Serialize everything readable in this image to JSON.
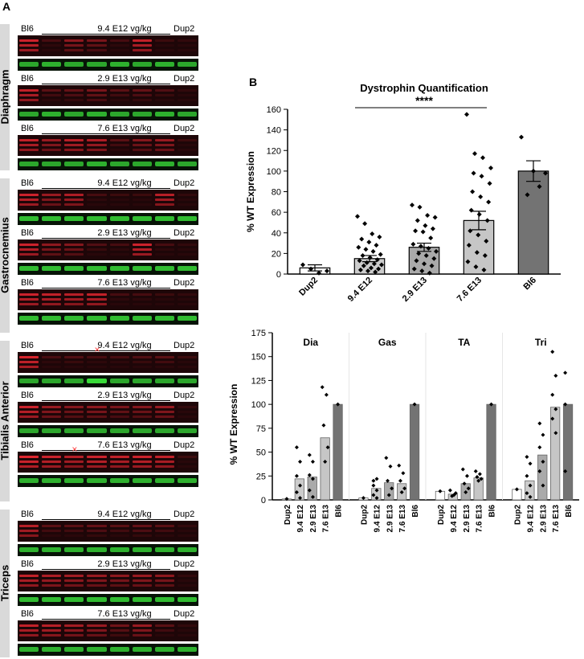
{
  "panel_a": {
    "letter": "A",
    "muscles": [
      {
        "name": "Diaphragm",
        "blots": [
          {
            "left": "Bl6",
            "dose": "9.4 E12 vg/kg",
            "right": "Dup2",
            "lanes": [
              0.85,
              0.2,
              0.55,
              0.45,
              0.2,
              0.8,
              0.15,
              0.1
            ],
            "green": [
              0.7,
              0.75,
              0.7,
              0.7,
              0.75,
              0.7,
              0.75,
              0.7
            ]
          },
          {
            "left": "Bl6",
            "dose": "2.9 E13 vg/kg",
            "right": "Dup2",
            "lanes": [
              0.8,
              0.3,
              0.35,
              0.45,
              0.3,
              0.35,
              0.25,
              0.1
            ],
            "green": [
              0.7,
              0.75,
              0.7,
              0.75,
              0.7,
              0.7,
              0.75,
              0.7
            ]
          },
          {
            "left": "Bl6",
            "dose": "7.6 E13 vg/kg",
            "right": "Dup2",
            "lanes": [
              0.8,
              0.6,
              0.75,
              0.7,
              0.3,
              0.5,
              0.6,
              0.15
            ],
            "green": [
              0.7,
              0.7,
              0.7,
              0.75,
              0.7,
              0.7,
              0.75,
              0.7
            ]
          }
        ]
      },
      {
        "name": "Gastrocnemius",
        "blots": [
          {
            "left": "Bl6",
            "dose": "9.4 E12 vg/kg",
            "right": "Dup2",
            "lanes": [
              0.85,
              0.6,
              0.7,
              0.2,
              0.15,
              0.15,
              0.75,
              0.1
            ],
            "green": [
              0.8,
              0.8,
              0.8,
              0.8,
              0.8,
              0.8,
              0.8,
              0.8
            ]
          },
          {
            "left": "Bl6",
            "dose": "2.9 E13 vg/kg",
            "right": "Dup2",
            "lanes": [
              0.85,
              0.55,
              0.5,
              0.25,
              0.2,
              0.85,
              0.2,
              0.1
            ],
            "green": [
              0.8,
              0.8,
              0.8,
              0.8,
              0.8,
              0.8,
              0.8,
              0.8
            ]
          },
          {
            "left": "Bl6",
            "dose": "7.6 E13 vg/kg",
            "right": "Dup2",
            "lanes": [
              0.85,
              0.8,
              0.75,
              0.8,
              0.2,
              0.2,
              0.15,
              0.1
            ],
            "green": [
              0.8,
              0.8,
              0.8,
              0.8,
              0.8,
              0.8,
              0.8,
              0.8
            ]
          }
        ]
      },
      {
        "name": "Tibialis Anterior",
        "blots": [
          {
            "left": "Bl6",
            "dose": "9.4 E12 vg/kg",
            "right": "Dup2",
            "lanes": [
              0.9,
              0.2,
              0.25,
              0.2,
              0.2,
              0.25,
              0.3,
              0.15
            ],
            "green": [
              0.7,
              0.7,
              0.7,
              0.95,
              0.7,
              0.7,
              0.7,
              0.7
            ],
            "x_lane": 3
          },
          {
            "left": "Bl6",
            "dose": "2.9 E13 vg/kg",
            "right": "Dup2",
            "lanes": [
              0.85,
              0.6,
              0.5,
              0.55,
              0.45,
              0.5,
              0.6,
              0.1
            ],
            "green": [
              0.7,
              0.7,
              0.7,
              0.7,
              0.7,
              0.7,
              0.7,
              0.7
            ]
          },
          {
            "left": "Bl6",
            "dose": "7.6 E13 vg/kg",
            "right": "Dup2",
            "lanes": [
              0.95,
              0.85,
              0.75,
              0.85,
              0.8,
              0.85,
              0.8,
              0.15
            ],
            "green": [
              0.75,
              0.75,
              0.75,
              0.75,
              0.75,
              0.75,
              0.75,
              0.75
            ],
            "x_lane": 2
          }
        ]
      },
      {
        "name": "Triceps",
        "blots": [
          {
            "left": "Bl6",
            "dose": "9.4 E12 vg/kg",
            "right": "Dup2",
            "lanes": [
              0.75,
              0.3,
              0.3,
              0.35,
              0.3,
              0.35,
              0.3,
              0.1
            ],
            "green": [
              0.75,
              0.75,
              0.75,
              0.75,
              0.75,
              0.75,
              0.75,
              0.75
            ]
          },
          {
            "left": "Bl6",
            "dose": "2.9 E13 vg/kg",
            "right": "Dup2",
            "lanes": [
              0.8,
              0.7,
              0.65,
              0.6,
              0.55,
              0.6,
              0.55,
              0.1
            ],
            "green": [
              0.8,
              0.8,
              0.8,
              0.8,
              0.8,
              0.8,
              0.8,
              0.8
            ]
          },
          {
            "left": "Bl6",
            "dose": "7.6 E13 vg/kg",
            "right": "Dup2",
            "lanes": [
              0.8,
              0.75,
              0.65,
              0.6,
              0.4,
              0.6,
              0.3,
              0.1
            ],
            "green": [
              0.75,
              0.75,
              0.75,
              0.75,
              0.75,
              0.75,
              0.75,
              0.75
            ]
          }
        ]
      }
    ]
  },
  "panel_b": {
    "letter": "B"
  },
  "chart_data": [
    {
      "type": "bar",
      "title": "Dystrophin Quantification",
      "ylabel": "% WT Expression",
      "ylim": [
        0,
        160
      ],
      "yticks": [
        0,
        20,
        40,
        60,
        80,
        100,
        120,
        140,
        160
      ],
      "categories": [
        "Dup2",
        "9.4 E12",
        "2.9 E13",
        "7.6 E13",
        "Bl6"
      ],
      "values": [
        6,
        15,
        26,
        52,
        100
      ],
      "sem": [
        3,
        3,
        4,
        9,
        10
      ],
      "colors": [
        "#ffffff",
        "#cccccc",
        "#aaaaaa",
        "#c6c6c6",
        "#737373"
      ],
      "points": [
        [
          9,
          3,
          1,
          5
        ],
        [
          56,
          49,
          39,
          36,
          34,
          31,
          28,
          26,
          24,
          22,
          19,
          18,
          16,
          14,
          13,
          11,
          10,
          9,
          8,
          6,
          5,
          4,
          3,
          2
        ],
        [
          67,
          65,
          57,
          55,
          52,
          47,
          44,
          42,
          41,
          35,
          29,
          27,
          25,
          22,
          20,
          18,
          15,
          13,
          10,
          8,
          5,
          3,
          1
        ],
        [
          155,
          117,
          113,
          103,
          98,
          95,
          88,
          80,
          75,
          70,
          62,
          58,
          52,
          42,
          38,
          32,
          28,
          21,
          18,
          12,
          7,
          4
        ],
        [
          133,
          100,
          98,
          77,
          85
        ]
      ],
      "significance": {
        "label": "****",
        "from": "9.4 E12",
        "to": "7.6 E13"
      }
    },
    {
      "type": "bar",
      "ylabel": "% WT Expression",
      "ylim": [
        0,
        175
      ],
      "yticks": [
        0,
        25,
        50,
        75,
        100,
        125,
        150,
        175
      ],
      "categories": [
        "Dup2",
        "9.4 E12",
        "2.9 E13",
        "7.6 E13",
        "Bl6"
      ],
      "colors": [
        "#ffffff",
        "#cccccc",
        "#aaaaaa",
        "#c6c6c6",
        "#737373"
      ],
      "facets": [
        {
          "name": "Dia",
          "values": [
            1,
            22,
            24,
            65,
            100
          ],
          "points": [
            [
              1
            ],
            [
              55,
              40,
              25,
              15,
              8,
              2
            ],
            [
              47,
              40,
              26,
              22,
              10,
              3
            ],
            [
              118,
              110,
              78,
              55,
              40
            ],
            [
              100
            ]
          ]
        },
        {
          "name": "Gas",
          "values": [
            2,
            12,
            18,
            17,
            100
          ],
          "points": [
            [
              2
            ],
            [
              20,
              22,
              15,
              10,
              5,
              2
            ],
            [
              44,
              35,
              20,
              12,
              5
            ],
            [
              36,
              28,
              20,
              12,
              8
            ],
            [
              100
            ]
          ]
        },
        {
          "name": "TA",
          "values": [
            9,
            6,
            17,
            23,
            100
          ],
          "points": [
            [
              9
            ],
            [
              10,
              7,
              5,
              4
            ],
            [
              32,
              25,
              17,
              12,
              8
            ],
            [
              30,
              27,
              24,
              22,
              20
            ],
            [
              100
            ]
          ]
        },
        {
          "name": "Tri",
          "values": [
            11,
            20,
            47,
            97,
            100
          ],
          "points": [
            [
              11
            ],
            [
              45,
              38,
              25,
              15,
              7,
              3
            ],
            [
              80,
              68,
              55,
              40,
              30,
              15
            ],
            [
              155,
              130,
              110,
              95,
              85,
              70
            ],
            [
              133,
              100,
              30
            ]
          ]
        }
      ]
    }
  ]
}
